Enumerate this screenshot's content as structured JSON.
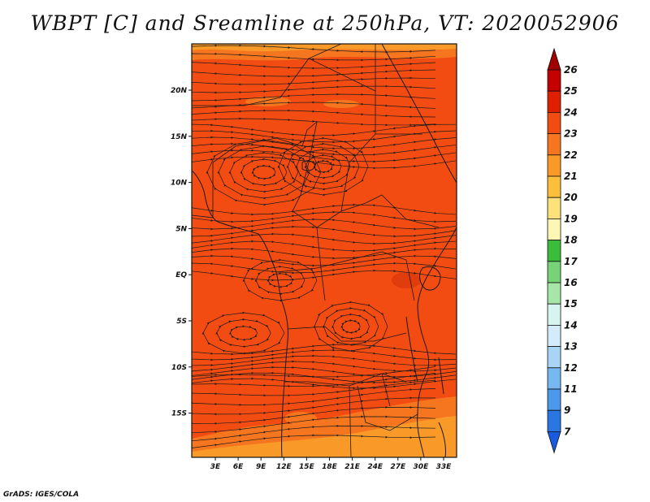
{
  "title": "WBPT [C] and Sreamline at 250hPa, VT: 2020052906",
  "footer": "GrADS: IGES/COLA",
  "colors": {
    "field_main": "#f24c12",
    "field_dark": "#e03c0c",
    "field_warm": "#f5761e",
    "field_orange": "#f99a28",
    "coastline": "#1a1a1a",
    "streamline": "#1a1a1a"
  },
  "map": {
    "lon_ticks": [
      "3E",
      "6E",
      "9E",
      "12E",
      "15E",
      "18E",
      "21E",
      "24E",
      "27E",
      "30E",
      "33E"
    ],
    "lat_ticks": [
      "20N",
      "15N",
      "10N",
      "5N",
      "EQ",
      "5S",
      "10S",
      "15S"
    ]
  },
  "colorbar": {
    "levels": [
      "26",
      "25",
      "24",
      "23",
      "22",
      "21",
      "20",
      "19",
      "18",
      "17",
      "16",
      "15",
      "14",
      "13",
      "12",
      "11",
      "9",
      "7"
    ],
    "colors": [
      "#a00000",
      "#c40000",
      "#e01e00",
      "#f24c12",
      "#f5761e",
      "#f99a28",
      "#fbbf3c",
      "#fde17a",
      "#fdf6b4",
      "#3cbc3c",
      "#78d278",
      "#a6e6a6",
      "#d6f5f0",
      "#d4ebfa",
      "#a8d4f5",
      "#78b8f0",
      "#4c98ea",
      "#2a76e2",
      "#1a5ade"
    ]
  }
}
